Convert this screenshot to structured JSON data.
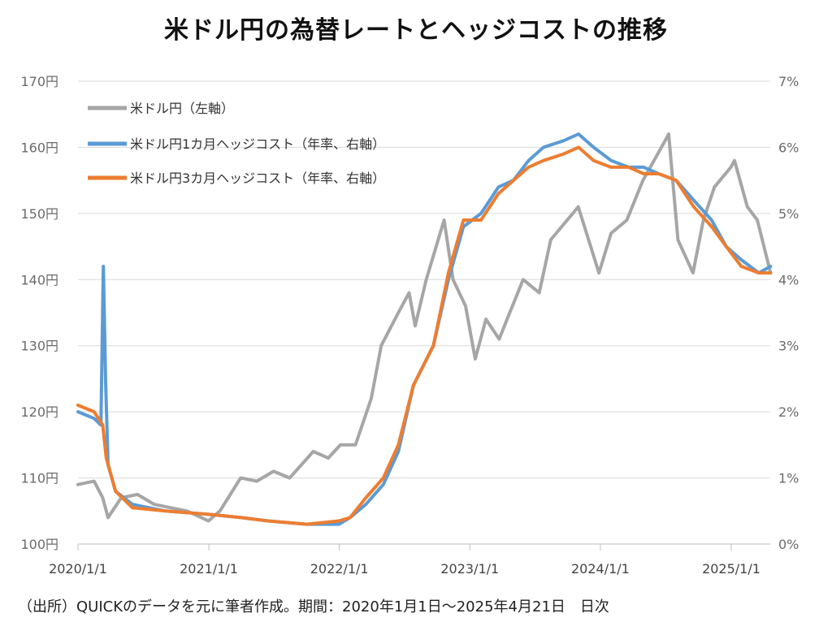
{
  "title": "米ドル円の為替レートとヘッジコストの推移",
  "source": "（出所）QUICKのデータを元に筆者作成。期間：2020年1月1日～2025年4月21日　日次",
  "chart_data": {
    "type": "line",
    "title": "米ドル円の為替レートとヘッジコストの推移",
    "x_ticks": [
      "2020/1/1",
      "2021/1/1",
      "2022/1/1",
      "2023/1/1",
      "2024/1/1",
      "2025/1/1"
    ],
    "x_range": [
      "2020-01-01",
      "2025-04-21"
    ],
    "y_left_ticks": [
      "100円",
      "110円",
      "120円",
      "130円",
      "140円",
      "150円",
      "160円",
      "170円"
    ],
    "y_left_range": [
      100,
      170
    ],
    "y_right_ticks": [
      "0%",
      "1%",
      "2%",
      "3%",
      "4%",
      "5%",
      "6%",
      "7%"
    ],
    "y_right_range": [
      0,
      7
    ],
    "grid": true,
    "legend_position": "top-left",
    "series": [
      {
        "name": "米ドル円（左軸）",
        "axis": "left",
        "color": "#a6a6a6",
        "x": [
          "2020-01-01",
          "2020-02-15",
          "2020-03-10",
          "2020-03-25",
          "2020-05-01",
          "2020-06-15",
          "2020-08-01",
          "2020-09-15",
          "2020-11-01",
          "2020-12-31",
          "2021-02-01",
          "2021-03-31",
          "2021-05-15",
          "2021-07-01",
          "2021-08-15",
          "2021-10-20",
          "2021-12-01",
          "2022-01-04",
          "2022-02-15",
          "2022-03-31",
          "2022-04-28",
          "2022-06-15",
          "2022-07-15",
          "2022-08-01",
          "2022-09-01",
          "2022-10-21",
          "2022-11-15",
          "2022-12-20",
          "2023-01-16",
          "2023-02-15",
          "2023-03-24",
          "2023-04-15",
          "2023-05-30",
          "2023-07-14",
          "2023-08-15",
          "2023-10-31",
          "2023-12-28",
          "2024-01-31",
          "2024-03-15",
          "2024-04-29",
          "2024-06-30",
          "2024-07-10",
          "2024-08-05",
          "2024-09-16",
          "2024-10-15",
          "2024-11-15",
          "2024-12-31",
          "2025-01-10",
          "2025-02-15",
          "2025-03-15",
          "2025-04-21"
        ],
        "values": [
          109,
          109.5,
          107,
          104,
          107,
          107.5,
          106,
          105.5,
          105,
          103.5,
          105,
          110,
          109.5,
          111,
          110,
          114,
          113,
          115,
          115,
          122,
          130,
          135,
          138,
          133,
          140,
          149,
          140,
          136,
          128,
          134,
          131,
          134,
          140,
          138,
          146,
          151,
          141,
          147,
          149,
          155,
          161,
          162,
          146,
          141,
          149,
          154,
          157,
          158,
          151,
          149,
          141
        ]
      },
      {
        "name": "米ドル円1カ月ヘッジコスト（年率、右軸）",
        "axis": "right",
        "color": "#5b9bd5",
        "x": [
          "2020-01-01",
          "2020-02-15",
          "2020-03-05",
          "2020-03-12",
          "2020-03-18",
          "2020-03-25",
          "2020-04-15",
          "2020-06-01",
          "2020-09-01",
          "2020-12-31",
          "2021-04-01",
          "2021-06-15",
          "2021-10-01",
          "2021-12-31",
          "2022-01-31",
          "2022-03-16",
          "2022-05-04",
          "2022-06-15",
          "2022-07-27",
          "2022-09-21",
          "2022-11-02",
          "2022-12-14",
          "2023-02-01",
          "2023-03-22",
          "2023-05-03",
          "2023-06-14",
          "2023-07-26",
          "2023-09-20",
          "2023-11-01",
          "2023-12-13",
          "2024-01-31",
          "2024-03-20",
          "2024-05-01",
          "2024-06-12",
          "2024-07-31",
          "2024-09-18",
          "2024-11-07",
          "2024-12-18",
          "2025-01-29",
          "2025-03-19",
          "2025-04-21"
        ],
        "values": [
          2.0,
          1.9,
          1.8,
          4.2,
          2.5,
          1.2,
          0.8,
          0.6,
          0.5,
          0.45,
          0.4,
          0.35,
          0.3,
          0.3,
          0.4,
          0.6,
          0.9,
          1.4,
          2.4,
          3.0,
          4.0,
          4.8,
          5.0,
          5.4,
          5.5,
          5.8,
          6.0,
          6.1,
          6.2,
          6.0,
          5.8,
          5.7,
          5.7,
          5.6,
          5.5,
          5.2,
          4.9,
          4.5,
          4.3,
          4.1,
          4.2
        ]
      },
      {
        "name": "米ドル円3カ月ヘッジコスト（年率、右軸）",
        "axis": "right",
        "color": "#ed7d31",
        "x": [
          "2020-01-01",
          "2020-02-15",
          "2020-03-10",
          "2020-03-20",
          "2020-04-15",
          "2020-06-01",
          "2020-09-01",
          "2020-12-31",
          "2021-04-01",
          "2021-06-15",
          "2021-10-01",
          "2021-12-31",
          "2022-01-31",
          "2022-03-16",
          "2022-05-04",
          "2022-06-15",
          "2022-07-27",
          "2022-09-21",
          "2022-11-02",
          "2022-12-14",
          "2023-02-01",
          "2023-03-22",
          "2023-05-03",
          "2023-06-14",
          "2023-07-26",
          "2023-09-20",
          "2023-11-01",
          "2023-12-13",
          "2024-01-31",
          "2024-03-20",
          "2024-05-01",
          "2024-06-12",
          "2024-07-31",
          "2024-09-18",
          "2024-11-07",
          "2024-12-18",
          "2025-01-29",
          "2025-03-19",
          "2025-04-21"
        ],
        "values": [
          2.1,
          2.0,
          1.8,
          1.3,
          0.8,
          0.55,
          0.5,
          0.45,
          0.4,
          0.35,
          0.3,
          0.35,
          0.4,
          0.7,
          1.0,
          1.5,
          2.4,
          3.0,
          4.1,
          4.9,
          4.9,
          5.3,
          5.5,
          5.7,
          5.8,
          5.9,
          6.0,
          5.8,
          5.7,
          5.7,
          5.6,
          5.6,
          5.5,
          5.1,
          4.8,
          4.5,
          4.2,
          4.1,
          4.1
        ]
      }
    ]
  }
}
